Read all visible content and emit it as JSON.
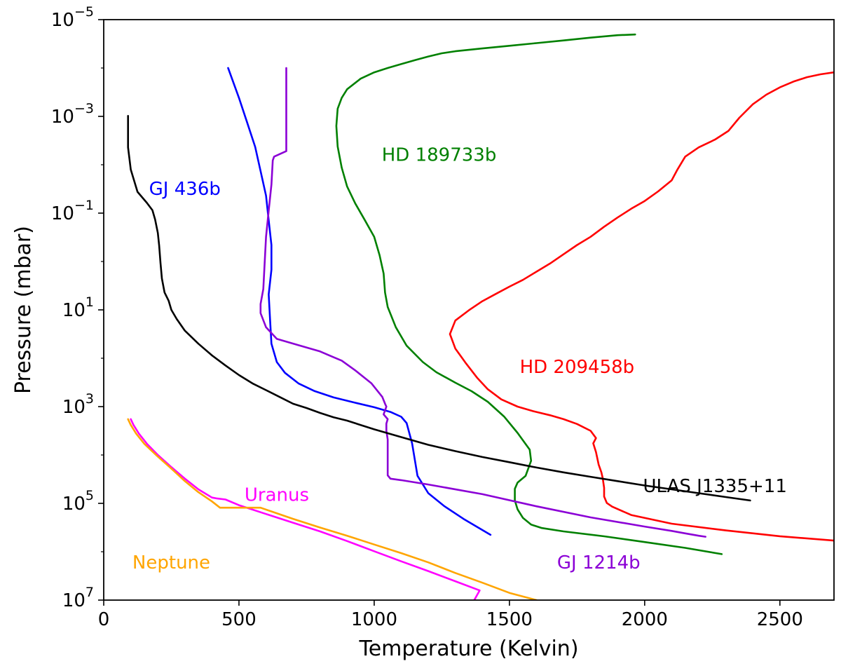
{
  "chart_data": {
    "type": "line",
    "title": "",
    "xlabel": "Temperature (Kelvin)",
    "ylabel": "Pressure (mbar)",
    "xlim": [
      0,
      2700
    ],
    "ylim": [
      10000000,
      1e-05
    ],
    "yscale": "log",
    "y_inverted": true,
    "grid": false,
    "legend": "none (inline series labels)",
    "x_ticks": [
      0,
      500,
      1000,
      1500,
      2000,
      2500
    ],
    "x_tick_labels": [
      "0",
      "500",
      "1000",
      "1500",
      "2000",
      "2500"
    ],
    "y_ticks": [
      1e-05,
      0.001,
      0.1,
      10,
      1000,
      100000,
      10000000
    ],
    "y_tick_labels": [
      {
        "base": "10",
        "exp": "−5"
      },
      {
        "base": "10",
        "exp": "−3"
      },
      {
        "base": "10",
        "exp": "−1"
      },
      {
        "base": "10",
        "exp": "1"
      },
      {
        "base": "10",
        "exp": "3"
      },
      {
        "base": "10",
        "exp": "5"
      },
      {
        "base": "10",
        "exp": "7"
      }
    ],
    "series": [
      {
        "name": "HD 189733b",
        "color": "#008000",
        "points": [
          [
            1965,
            2.03e-05
          ],
          [
            1900,
            2.1e-05
          ],
          [
            1800,
            2.36e-05
          ],
          [
            1700,
            2.69e-05
          ],
          [
            1600,
            3.06e-05
          ],
          [
            1500,
            3.47e-05
          ],
          [
            1400,
            3.94e-05
          ],
          [
            1300,
            4.5e-05
          ],
          [
            1250,
            4.96e-05
          ],
          [
            1200,
            5.78e-05
          ],
          [
            1150,
            6.9e-05
          ],
          [
            1100,
            8.3e-05
          ],
          [
            1050,
            0.0001
          ],
          [
            1000,
            0.000123
          ],
          [
            950,
            0.000166
          ],
          [
            900,
            0.000275
          ],
          [
            880,
            0.000415
          ],
          [
            865,
            0.000696
          ],
          [
            860,
            0.00158
          ],
          [
            865,
            0.0042
          ],
          [
            880,
            0.0115
          ],
          [
            900,
            0.0282
          ],
          [
            930,
            0.0631
          ],
          [
            965,
            0.138
          ],
          [
            1000,
            0.309
          ],
          [
            1020,
            0.741
          ],
          [
            1035,
            1.78
          ],
          [
            1040,
            4.37
          ],
          [
            1050,
            8.71
          ],
          [
            1080,
            22.9
          ],
          [
            1120,
            55
          ],
          [
            1180,
            120
          ],
          [
            1230,
            195
          ],
          [
            1300,
            320
          ],
          [
            1360,
            480
          ],
          [
            1420,
            794
          ],
          [
            1480,
            1600
          ],
          [
            1530,
            3500
          ],
          [
            1575,
            7760
          ],
          [
            1580,
            13200
          ],
          [
            1560,
            26900
          ],
          [
            1530,
            37200
          ],
          [
            1520,
            50100
          ],
          [
            1520,
            87100
          ],
          [
            1530,
            133000
          ],
          [
            1550,
            200000
          ],
          [
            1580,
            275000
          ],
          [
            1620,
            324000
          ],
          [
            1700,
            380000
          ],
          [
            1850,
            480000
          ],
          [
            2000,
            631000
          ],
          [
            2150,
            832000
          ],
          [
            2285,
            1120000
          ]
        ]
      },
      {
        "name": "HD 209458b",
        "color": "#ff0000",
        "points": [
          [
            2700,
            0.000123
          ],
          [
            2650,
            0.000135
          ],
          [
            2600,
            0.000155
          ],
          [
            2550,
            0.000191
          ],
          [
            2500,
            0.000251
          ],
          [
            2450,
            0.000355
          ],
          [
            2400,
            0.000562
          ],
          [
            2350,
            0.00107
          ],
          [
            2310,
            0.00199
          ],
          [
            2260,
            0.00302
          ],
          [
            2200,
            0.00437
          ],
          [
            2150,
            0.0068
          ],
          [
            2120,
            0.0129
          ],
          [
            2100,
            0.021
          ],
          [
            2050,
            0.0355
          ],
          [
            2000,
            0.0562
          ],
          [
            1950,
            0.0814
          ],
          [
            1900,
            0.123
          ],
          [
            1850,
            0.191
          ],
          [
            1800,
            0.309
          ],
          [
            1750,
            0.457
          ],
          [
            1700,
            0.708
          ],
          [
            1650,
            1.1
          ],
          [
            1600,
            1.62
          ],
          [
            1550,
            2.4
          ],
          [
            1500,
            3.31
          ],
          [
            1450,
            4.68
          ],
          [
            1400,
            6.61
          ],
          [
            1350,
            10.2
          ],
          [
            1300,
            16.6
          ],
          [
            1280,
            31.6
          ],
          [
            1300,
            63.1
          ],
          [
            1340,
            129
          ],
          [
            1380,
            251
          ],
          [
            1420,
            437
          ],
          [
            1470,
            708
          ],
          [
            1530,
            1000
          ],
          [
            1590,
            1250
          ],
          [
            1650,
            1510
          ],
          [
            1700,
            1820
          ],
          [
            1750,
            2290
          ],
          [
            1800,
            3160
          ],
          [
            1820,
            4470
          ],
          [
            1810,
            5750
          ],
          [
            1820,
            8710
          ],
          [
            1830,
            15800
          ],
          [
            1840,
            22900
          ],
          [
            1845,
            30200
          ],
          [
            1850,
            47900
          ],
          [
            1850,
            72400
          ],
          [
            1860,
            98000
          ],
          [
            1880,
            117000
          ],
          [
            1950,
            174000
          ],
          [
            2100,
            263000
          ],
          [
            2300,
            363000
          ],
          [
            2500,
            479000
          ],
          [
            2700,
            589000
          ]
        ]
      },
      {
        "name": "GJ 436b",
        "color": "#0000ff",
        "points": [
          [
            460,
            0.0001
          ],
          [
            500,
            0.000416
          ],
          [
            530,
            0.00132
          ],
          [
            560,
            0.00427
          ],
          [
            580,
            0.0135
          ],
          [
            600,
            0.0436
          ],
          [
            610,
            0.141
          ],
          [
            620,
            0.457
          ],
          [
            620,
            1.48
          ],
          [
            610,
            4.79
          ],
          [
            615,
            15.5
          ],
          [
            620,
            50.1
          ],
          [
            640,
            120
          ],
          [
            670,
            200
          ],
          [
            720,
            331
          ],
          [
            780,
            479
          ],
          [
            850,
            646
          ],
          [
            930,
            832
          ],
          [
            1000,
            1030
          ],
          [
            1060,
            1290
          ],
          [
            1100,
            1620
          ],
          [
            1120,
            2190
          ],
          [
            1140,
            5750
          ],
          [
            1160,
            26900
          ],
          [
            1200,
            61700
          ],
          [
            1260,
            115000
          ],
          [
            1330,
            209000
          ],
          [
            1430,
            447000
          ]
        ]
      },
      {
        "name": "GJ 1214b",
        "color": "#8b00d6",
        "points": [
          [
            675,
            0.0001
          ],
          [
            675,
            0.00149
          ],
          [
            675,
            0.00523
          ],
          [
            630,
            0.0068
          ],
          [
            625,
            0.00813
          ],
          [
            620,
            0.0257
          ],
          [
            610,
            0.0891
          ],
          [
            600,
            0.309
          ],
          [
            595,
            1.1
          ],
          [
            590,
            3.72
          ],
          [
            580,
            7.59
          ],
          [
            580,
            11.7
          ],
          [
            600,
            22.9
          ],
          [
            640,
            39.8
          ],
          [
            720,
            53.7
          ],
          [
            800,
            72.4
          ],
          [
            850,
            95.5
          ],
          [
            880,
            112
          ],
          [
            930,
            178
          ],
          [
            990,
            331
          ],
          [
            1030,
            631
          ],
          [
            1040,
            871
          ],
          [
            1045,
            1000
          ],
          [
            1035,
            1450
          ],
          [
            1050,
            1820
          ],
          [
            1045,
            2240
          ],
          [
            1045,
            3160
          ],
          [
            1050,
            4790
          ],
          [
            1050,
            8710
          ],
          [
            1050,
            26300
          ],
          [
            1060,
            30900
          ],
          [
            1100,
            33100
          ],
          [
            1200,
            40700
          ],
          [
            1400,
            64600
          ],
          [
            1600,
            115000
          ],
          [
            1800,
            195000
          ],
          [
            2000,
            302000
          ],
          [
            2100,
            371000
          ],
          [
            2150,
            417000
          ],
          [
            2200,
            468000
          ],
          [
            2225,
            490000
          ]
        ]
      },
      {
        "name": "ULAS J1335+11",
        "color": "#000000",
        "points": [
          [
            90,
            0.000977
          ],
          [
            90,
            0.00437
          ],
          [
            100,
            0.0126
          ],
          [
            125,
            0.0363
          ],
          [
            160,
            0.0617
          ],
          [
            180,
            0.0871
          ],
          [
            190,
            0.135
          ],
          [
            200,
            0.257
          ],
          [
            205,
            0.468
          ],
          [
            210,
            1.07
          ],
          [
            215,
            2.24
          ],
          [
            225,
            4.37
          ],
          [
            240,
            6.46
          ],
          [
            250,
            10
          ],
          [
            270,
            15.5
          ],
          [
            300,
            26.9
          ],
          [
            350,
            50.1
          ],
          [
            400,
            87.1
          ],
          [
            450,
            141
          ],
          [
            500,
            223
          ],
          [
            550,
            331
          ],
          [
            600,
            457
          ],
          [
            650,
            631
          ],
          [
            700,
            871
          ],
          [
            750,
            1070
          ],
          [
            800,
            1350
          ],
          [
            850,
            1660
          ],
          [
            900,
            1950
          ],
          [
            950,
            2400
          ],
          [
            1000,
            2950
          ],
          [
            1100,
            4270
          ],
          [
            1200,
            6170
          ],
          [
            1300,
            8320
          ],
          [
            1400,
            11000
          ],
          [
            1500,
            14100
          ],
          [
            1600,
            18200
          ],
          [
            1700,
            22900
          ],
          [
            1800,
            28200
          ],
          [
            1900,
            34700
          ],
          [
            2000,
            42700
          ],
          [
            2100,
            51300
          ],
          [
            2200,
            61700
          ],
          [
            2300,
            74100
          ],
          [
            2390,
            87100
          ]
        ]
      },
      {
        "name": "Uranus",
        "color": "#ff00ff",
        "points": [
          [
            100,
            1820
          ],
          [
            110,
            2400
          ],
          [
            130,
            3630
          ],
          [
            160,
            5890
          ],
          [
            200,
            10000
          ],
          [
            250,
            17800
          ],
          [
            300,
            30900
          ],
          [
            350,
            51300
          ],
          [
            400,
            75900
          ],
          [
            420,
            79400
          ],
          [
            450,
            83200
          ],
          [
            500,
            109000
          ],
          [
            600,
            166000
          ],
          [
            700,
            251000
          ],
          [
            800,
            380000
          ],
          [
            900,
            603000
          ],
          [
            1000,
            977000
          ],
          [
            1100,
            1580000
          ],
          [
            1200,
            2510000
          ],
          [
            1300,
            4070000
          ],
          [
            1390,
            6310000
          ],
          [
            1370,
            10000000
          ]
        ]
      },
      {
        "name": "Neptune",
        "color": "#ffa500",
        "points": [
          [
            90,
            1820
          ],
          [
            100,
            2400
          ],
          [
            120,
            3630
          ],
          [
            150,
            5890
          ],
          [
            200,
            10800
          ],
          [
            250,
            19100
          ],
          [
            300,
            34700
          ],
          [
            350,
            58900
          ],
          [
            400,
            91200
          ],
          [
            430,
            123000
          ],
          [
            500,
            123000
          ],
          [
            580,
            123000
          ],
          [
            700,
            209000
          ],
          [
            800,
            316000
          ],
          [
            900,
            468000
          ],
          [
            1000,
            708000
          ],
          [
            1100,
            1070000
          ],
          [
            1200,
            1660000
          ],
          [
            1300,
            2750000
          ],
          [
            1400,
            4370000
          ],
          [
            1500,
            7080000
          ],
          [
            1600,
            10000000
          ]
        ]
      }
    ],
    "annotations": [
      {
        "text": "GJ 436b",
        "color": "#0000ff",
        "x": 300,
        "y": 0.0417
      },
      {
        "text": "HD 189733b",
        "color": "#008000",
        "x": 1240,
        "y": 0.00832
      },
      {
        "text": "HD 209458b",
        "color": "#ff0000",
        "x": 1750,
        "y": 200
      },
      {
        "text": "ULAS J1335+11",
        "color": "#000000",
        "x": 2260,
        "y": 58900
      },
      {
        "text": "Uranus",
        "color": "#ff00ff",
        "x": 640,
        "y": 89100
      },
      {
        "text": "Neptune",
        "color": "#ffa500",
        "x": 250,
        "y": 2240000
      },
      {
        "text": "GJ 1214b",
        "color": "#8b00d6",
        "x": 1830,
        "y": 2240000
      }
    ]
  }
}
